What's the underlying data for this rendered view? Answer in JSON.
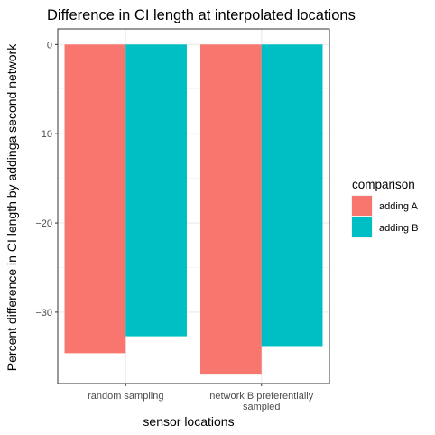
{
  "chart_data": {
    "type": "bar",
    "title": "Difference in CI length at interpolated locations",
    "xlabel": "sensor locations",
    "ylabel": "Percent difference in CI length by addinga second network",
    "categories": [
      "random sampling",
      "network B preferentially sampled"
    ],
    "category_labels": [
      [
        "random sampling"
      ],
      [
        "network B preferentially",
        "sampled"
      ]
    ],
    "series": [
      {
        "name": "adding A",
        "values": [
          -34.6,
          -36.9
        ],
        "color": "#F8766D"
      },
      {
        "name": "adding B",
        "values": [
          -32.7,
          -33.8
        ],
        "color": "#00BFC4"
      }
    ],
    "ylim": [
      -38.0,
      1.75
    ],
    "yticks": [
      0,
      -10,
      -20,
      -30
    ],
    "ytick_labels": [
      "0",
      "−10",
      "−20",
      "−30"
    ],
    "grid": true,
    "legend": {
      "title": "comparison",
      "position": "right"
    }
  }
}
